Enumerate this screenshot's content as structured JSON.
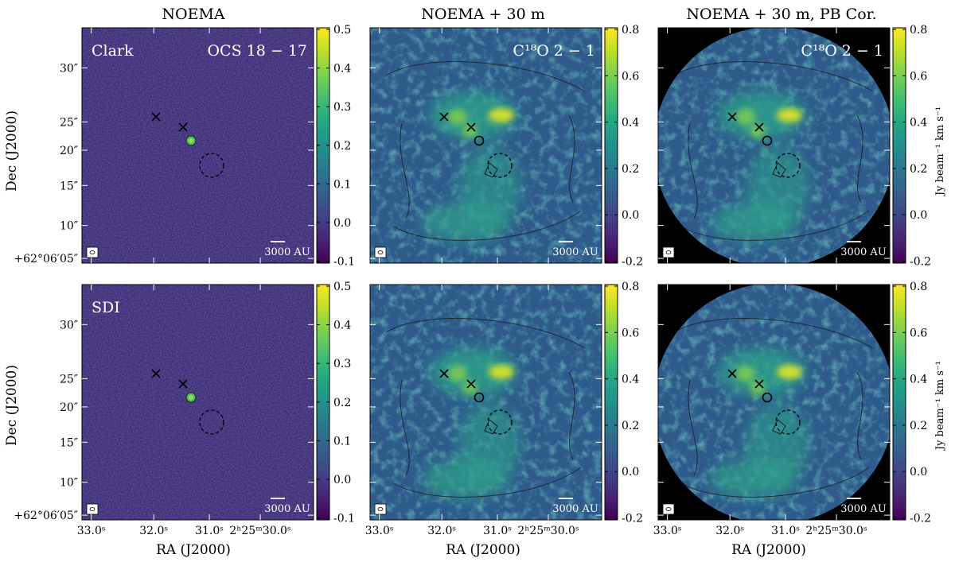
{
  "column_titles": [
    "NOEMA",
    "NOEMA + 30 m",
    "NOEMA + 30 m, PB Cor."
  ],
  "y_axis_label": "Dec (J2000)",
  "x_axis_label": "RA (J2000)",
  "y_ticks": [
    "30″",
    "25″",
    "20″",
    "15″",
    "10″",
    "+62°06′05″"
  ],
  "x_ticks": [
    "33.0ˢ",
    "32.0ˢ",
    "31.0ˢ",
    "2ʰ25ᵐ30.0ˢ"
  ],
  "colorbar_unit": "Jy beam⁻¹ km s⁻¹",
  "scalebar_label": "3000 AU",
  "colors": {
    "frame": "#000000",
    "pb_mask": "#000000",
    "contour": "#1a1a1a"
  },
  "chart_data": [
    {
      "type": "heatmap",
      "name": "Clark",
      "panel_label": "Clark",
      "line_label": "OCS 18 − 17",
      "column": 0,
      "row": 0,
      "colorbar_ticks": [
        "0.5",
        "0.4",
        "0.3",
        "0.2",
        "0.1",
        "0.0",
        "-0.1"
      ],
      "clim": [
        -0.1,
        0.5
      ],
      "pb_corrected": false
    },
    {
      "type": "heatmap",
      "name": "C18O-combined-top",
      "panel_label": "",
      "line_label": "C¹⁸O 2 − 1",
      "column": 1,
      "row": 0,
      "colorbar_ticks": [
        "0.8",
        "0.6",
        "0.4",
        "0.2",
        "0.0",
        "-0.2"
      ],
      "clim": [
        -0.2,
        0.8
      ],
      "pb_corrected": false
    },
    {
      "type": "heatmap",
      "name": "C18O-pbcor-top",
      "panel_label": "",
      "line_label": "C¹⁸O 2 − 1",
      "column": 2,
      "row": 0,
      "colorbar_ticks": [
        "0.8",
        "0.6",
        "0.4",
        "0.2",
        "0.0",
        "-0.2"
      ],
      "clim": [
        -0.2,
        0.8
      ],
      "pb_corrected": true
    },
    {
      "type": "heatmap",
      "name": "SDI",
      "panel_label": "SDI",
      "line_label": "",
      "column": 0,
      "row": 1,
      "colorbar_ticks": [
        "0.5",
        "0.4",
        "0.3",
        "0.2",
        "0.1",
        "0.0",
        "-0.1"
      ],
      "clim": [
        -0.1,
        0.5
      ],
      "pb_corrected": false
    },
    {
      "type": "heatmap",
      "name": "C18O-combined-bottom",
      "panel_label": "",
      "line_label": "",
      "column": 1,
      "row": 1,
      "colorbar_ticks": [
        "0.8",
        "0.6",
        "0.4",
        "0.2",
        "0.0",
        "-0.2"
      ],
      "clim": [
        -0.2,
        0.8
      ],
      "pb_corrected": false
    },
    {
      "type": "heatmap",
      "name": "C18O-pbcor-bottom",
      "panel_label": "",
      "line_label": "",
      "column": 2,
      "row": 1,
      "colorbar_ticks": [
        "0.8",
        "0.6",
        "0.4",
        "0.2",
        "0.0",
        "-0.2"
      ],
      "clim": [
        -0.2,
        0.8
      ],
      "pb_corrected": true
    }
  ]
}
